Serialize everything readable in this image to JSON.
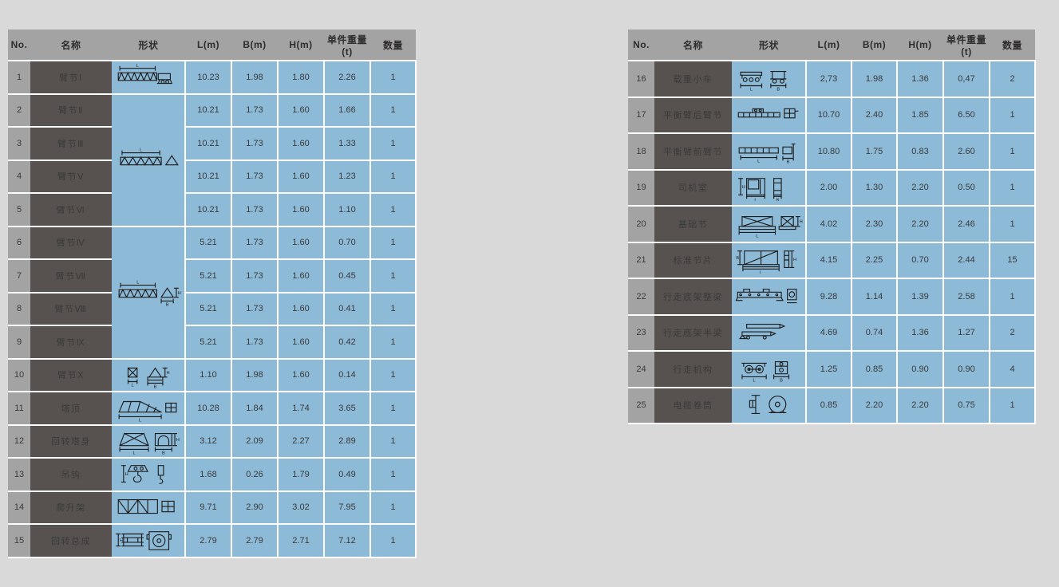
{
  "page": {
    "background_color": "#d9d9d9"
  },
  "colors": {
    "header_bg": "#a3a3a3",
    "no_col_bg": "#a3a3a3",
    "name_col_bg": "#575250",
    "cell_bg": "#8cbad7",
    "grid": "#ffffff",
    "header_text": "#2e2d2c",
    "name_text": "#eae8e6",
    "cell_text": "#3a3a3a"
  },
  "columns": [
    "No.",
    "名称",
    "形状",
    "L(m)",
    "B(m)",
    "H(m)",
    "单件重量(t)",
    "数量"
  ],
  "left_table": {
    "rows": [
      {
        "no": "1",
        "name": "臂节Ⅰ",
        "shape": "jib-section-head",
        "shape_rowspan": 1,
        "L": "10.23",
        "B": "1.98",
        "H": "1.80",
        "unit_weight": "2.26",
        "qty": "1"
      },
      {
        "no": "2",
        "name": "臂节Ⅱ",
        "shape": "jib-section-mid",
        "shape_rowspan": 4,
        "L": "10.21",
        "B": "1.73",
        "H": "1.60",
        "unit_weight": "1.66",
        "qty": "1"
      },
      {
        "no": "3",
        "name": "臂节Ⅲ",
        "shape": null,
        "L": "10.21",
        "B": "1.73",
        "H": "1.60",
        "unit_weight": "1.33",
        "qty": "1"
      },
      {
        "no": "4",
        "name": "臂节Ⅴ",
        "shape": null,
        "L": "10.21",
        "B": "1.73",
        "H": "1.60",
        "unit_weight": "1.23",
        "qty": "1"
      },
      {
        "no": "5",
        "name": "臂节Ⅵ",
        "shape": null,
        "L": "10.21",
        "B": "1.73",
        "H": "1.60",
        "unit_weight": "1.10",
        "qty": "1"
      },
      {
        "no": "6",
        "name": "臂节Ⅳ",
        "shape": "jib-section-dims",
        "shape_rowspan": 4,
        "L": "5.21",
        "B": "1.73",
        "H": "1.60",
        "unit_weight": "0.70",
        "qty": "1"
      },
      {
        "no": "7",
        "name": "臂节Ⅶ",
        "shape": null,
        "L": "5.21",
        "B": "1.73",
        "H": "1.60",
        "unit_weight": "0.45",
        "qty": "1"
      },
      {
        "no": "8",
        "name": "臂节Ⅷ",
        "shape": null,
        "L": "5.21",
        "B": "1.73",
        "H": "1.60",
        "unit_weight": "0.41",
        "qty": "1"
      },
      {
        "no": "9",
        "name": "臂节Ⅸ",
        "shape": null,
        "L": "5.21",
        "B": "1.73",
        "H": "1.60",
        "unit_weight": "0.42",
        "qty": "1"
      },
      {
        "no": "10",
        "name": "臂节Ⅹ",
        "shape": "jib-section-tail",
        "shape_rowspan": 1,
        "L": "1.10",
        "B": "1.98",
        "H": "1.60",
        "unit_weight": "0.14",
        "qty": "1"
      },
      {
        "no": "11",
        "name": "塔顶",
        "shape": "tower-head",
        "shape_rowspan": 1,
        "L": "10.28",
        "B": "1.84",
        "H": "1.74",
        "unit_weight": "3.65",
        "qty": "1"
      },
      {
        "no": "12",
        "name": "回转塔身",
        "shape": "slewing-tower",
        "shape_rowspan": 1,
        "L": "3.12",
        "B": "2.09",
        "H": "2.27",
        "unit_weight": "2.89",
        "qty": "1"
      },
      {
        "no": "13",
        "name": "吊钩",
        "shape": "hook-block",
        "shape_rowspan": 1,
        "L": "1.68",
        "B": "0.26",
        "H": "1.79",
        "unit_weight": "0.49",
        "qty": "1"
      },
      {
        "no": "14",
        "name": "爬升架",
        "shape": "climbing-frame",
        "shape_rowspan": 1,
        "L": "9.71",
        "B": "2.90",
        "H": "3.02",
        "unit_weight": "7.95",
        "qty": "1"
      },
      {
        "no": "15",
        "name": "回转总成",
        "shape": "slewing-assembly",
        "shape_rowspan": 1,
        "L": "2.79",
        "B": "2.79",
        "H": "2.71",
        "unit_weight": "7.12",
        "qty": "1"
      }
    ]
  },
  "right_table": {
    "rows": [
      {
        "no": "16",
        "name": "载重小车",
        "shape": "trolley",
        "shape_rowspan": 1,
        "L": "2,73",
        "B": "1.98",
        "H": "1.36",
        "unit_weight": "0,47",
        "qty": "2"
      },
      {
        "no": "17",
        "name": "平衡臂后臂节",
        "shape": "counter-jib-rear",
        "shape_rowspan": 1,
        "L": "10.70",
        "B": "2.40",
        "H": "1.85",
        "unit_weight": "6.50",
        "qty": "1"
      },
      {
        "no": "18",
        "name": "平衡臂前臂节",
        "shape": "counter-jib-front",
        "shape_rowspan": 1,
        "L": "10.80",
        "B": "1.75",
        "H": "0.83",
        "unit_weight": "2.60",
        "qty": "1"
      },
      {
        "no": "19",
        "name": "司机室",
        "shape": "cab",
        "shape_rowspan": 1,
        "L": "2.00",
        "B": "1.30",
        "H": "2.20",
        "unit_weight": "0.50",
        "qty": "1"
      },
      {
        "no": "20",
        "name": "基础节",
        "shape": "base-section",
        "shape_rowspan": 1,
        "L": "4.02",
        "B": "2.30",
        "H": "2.20",
        "unit_weight": "2.46",
        "qty": "1"
      },
      {
        "no": "21",
        "name": "标准节片",
        "shape": "standard-section-panel",
        "shape_rowspan": 1,
        "L": "4.15",
        "B": "2.25",
        "H": "0.70",
        "unit_weight": "2.44",
        "qty": "15"
      },
      {
        "no": "22",
        "name": "行走底架整梁",
        "shape": "chassis-full-beam",
        "shape_rowspan": 1,
        "L": "9.28",
        "B": "1.14",
        "H": "1.39",
        "unit_weight": "2.58",
        "qty": "1"
      },
      {
        "no": "23",
        "name": "行走底架半梁",
        "shape": "chassis-half-beam",
        "shape_rowspan": 1,
        "L": "4.69",
        "B": "0.74",
        "H": "1.36",
        "unit_weight": "1.27",
        "qty": "2"
      },
      {
        "no": "24",
        "name": "行走机构",
        "shape": "travel-mechanism",
        "shape_rowspan": 1,
        "L": "1.25",
        "B": "0.85",
        "H": "0.90",
        "unit_weight": "0.90",
        "qty": "4"
      },
      {
        "no": "25",
        "name": "电缆卷筒",
        "shape": "cable-drum",
        "shape_rowspan": 1,
        "L": "0.85",
        "B": "2.20",
        "H": "2.20",
        "unit_weight": "0.75",
        "qty": "1"
      }
    ]
  }
}
